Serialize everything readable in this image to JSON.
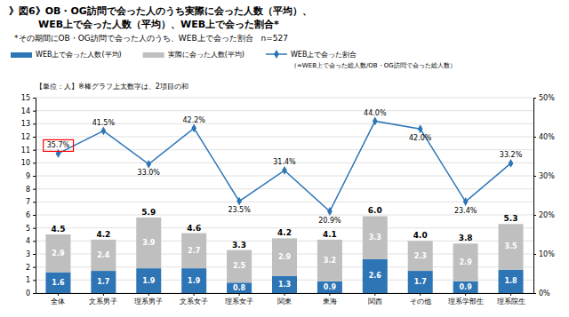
{
  "chart_data": {
    "type": "bar",
    "title": [
      "》図6》OB・OG訪問で会った人のうち実際に会った人数（平均）、",
      "　　　WEB上で会った人数（平均）、WEB上で会った割合*"
    ],
    "subtitle": "*その期間にOB・OG訪問で会った人のうち、WEB上で会った割合　n=527",
    "annotations": [
      "【単位：人】※棒グラフ上太数字は、2項目の和"
    ],
    "categories": [
      "全体",
      "文系男子",
      "理系男子",
      "文系女子",
      "理系女子",
      "関東",
      "東海",
      "関西",
      "その他",
      "理系学部生",
      "理系院生"
    ],
    "stacked": true,
    "data_labels": true,
    "grid": true,
    "legend": "top",
    "series": [
      {
        "name": "WEB上で会った人数(平均)",
        "type": "bar",
        "color": "#2E75B6",
        "values": [
          1.6,
          1.7,
          1.9,
          1.9,
          0.8,
          1.3,
          0.9,
          2.6,
          1.7,
          0.9,
          1.8
        ]
      },
      {
        "name": "実際に会った人数(平均)",
        "type": "bar",
        "color": "#BFBFBF",
        "values": [
          2.9,
          2.4,
          3.9,
          2.7,
          2.5,
          2.9,
          3.2,
          3.3,
          2.3,
          2.9,
          3.5
        ]
      },
      {
        "name": "WEB上で会った割合",
        "description": "（=WEB上で会った総人数/OB・OG訪問で会った総人数）",
        "type": "line",
        "axis": "y2",
        "color": "#2E75B6",
        "marker": "diamond",
        "line_style": "solid",
        "values": [
          35.7,
          41.5,
          33.0,
          42.2,
          23.5,
          31.4,
          20.9,
          44.0,
          42.0,
          23.4,
          33.2
        ],
        "value_labels": [
          "35.7%",
          "41.5%",
          "33.0%",
          "42.2%",
          "23.5%",
          "31.4%",
          "20.9%",
          "44.0%",
          "42.0%",
          "23.4%",
          "33.2%"
        ],
        "highlight": {
          "index": 0,
          "color": "#FF0000"
        }
      }
    ],
    "totals": {
      "values": [
        4.5,
        4.2,
        5.9,
        4.6,
        3.3,
        4.2,
        4.1,
        6.0,
        4.0,
        3.8,
        5.3
      ],
      "value_labels": [
        "4.5",
        "4.2",
        "5.9",
        "4.6",
        "3.3",
        "4.2",
        "4.1",
        "6.0",
        "4.0",
        "3.8",
        "5.3"
      ]
    },
    "ylim": [
      0,
      15
    ],
    "yticks": [
      0,
      1,
      2,
      3,
      4,
      5,
      6,
      7,
      8,
      9,
      10,
      11,
      12,
      13,
      14,
      15
    ],
    "y2lim": [
      0,
      50
    ],
    "y2ticks": [
      {
        "value": 0,
        "label": "0%"
      },
      {
        "value": 10,
        "label": "10%"
      },
      {
        "value": 20,
        "label": "20%"
      },
      {
        "value": 30,
        "label": "30%"
      },
      {
        "value": 40,
        "label": "40%"
      },
      {
        "value": 50,
        "label": "50%"
      }
    ]
  }
}
